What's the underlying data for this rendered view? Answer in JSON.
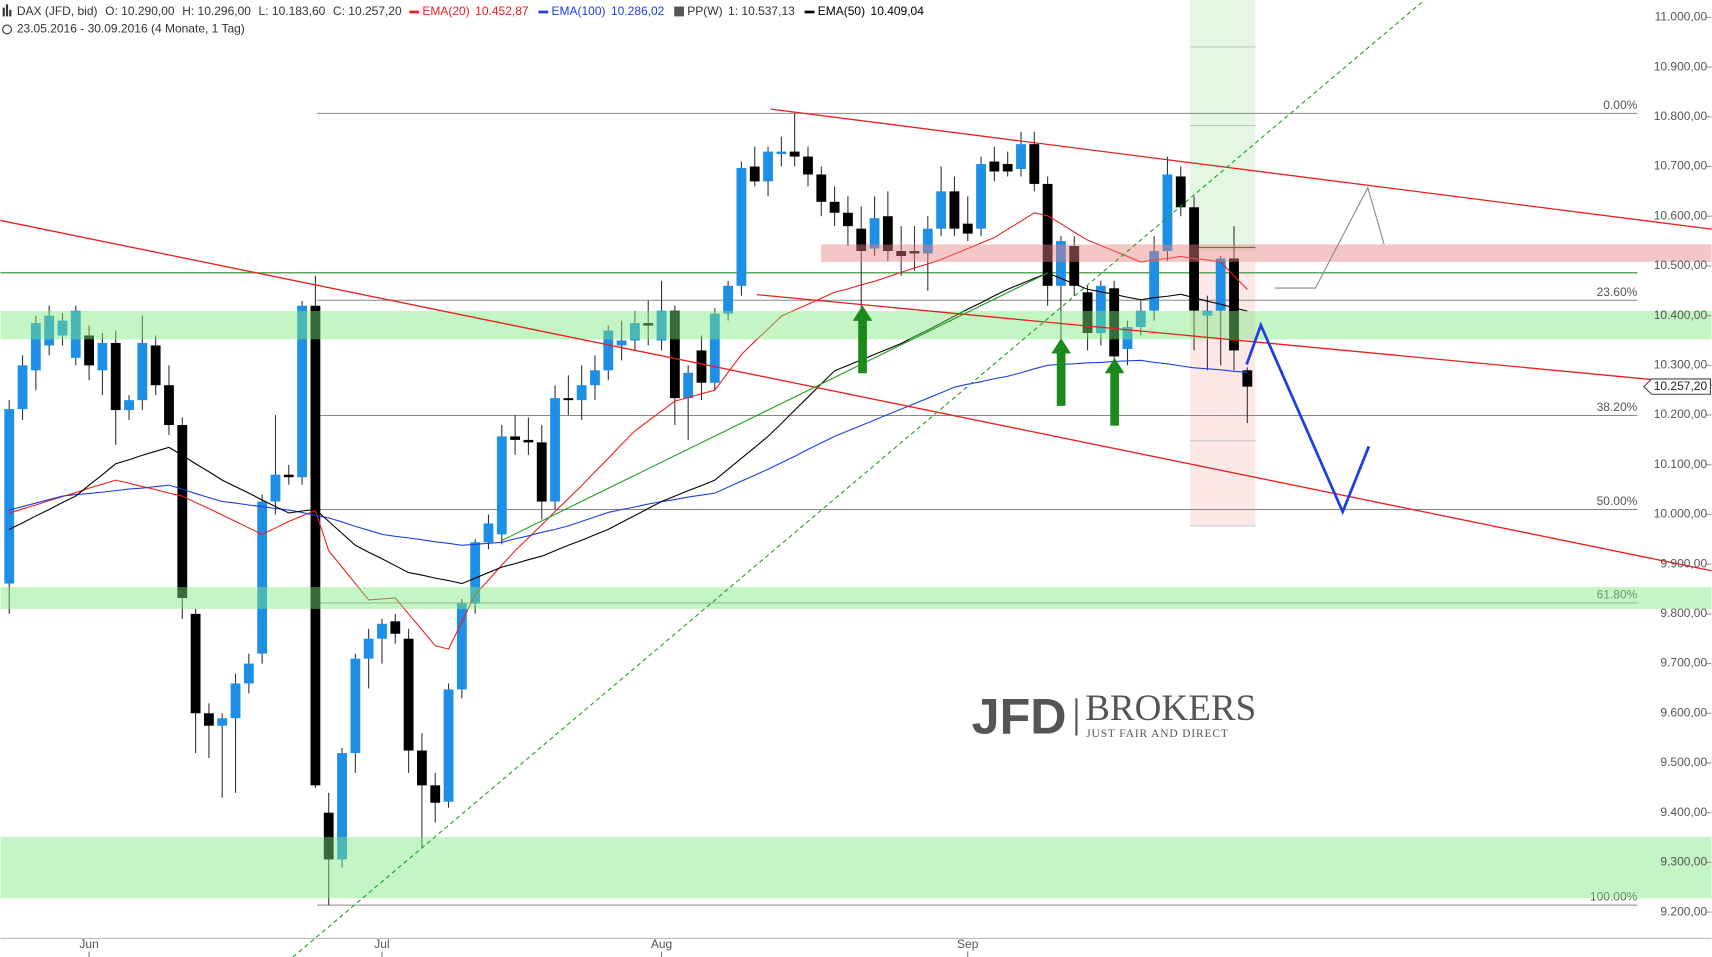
{
  "chart_data": {
    "type": "candlestick",
    "title": "DAX (JFD, bid)",
    "subtitle": "23.05.2016 - 30.09.2016 (4 Monate, 1 Tag)",
    "ohlc_labels": [
      "O: 10.290,00",
      "H: 10.296,00",
      "L: 10.183,60",
      "C: 10.257,20"
    ],
    "categories": [
      null,
      null,
      null,
      null,
      null,
      null,
      "Jun",
      null,
      null,
      null,
      null,
      null,
      null,
      null,
      null,
      null,
      null,
      null,
      null,
      null,
      null,
      null,
      null,
      null,
      null,
      null,
      null,
      null,
      "Jul",
      null,
      null,
      null,
      null,
      null,
      null,
      null,
      null,
      null,
      null,
      null,
      null,
      null,
      null,
      null,
      null,
      null,
      null,
      null,
      null,
      "Aug",
      null,
      null,
      null,
      null,
      null,
      null,
      null,
      null,
      null,
      null,
      null,
      null,
      null,
      null,
      null,
      null,
      null,
      null,
      null,
      null,
      null,
      null,
      "Sep",
      null,
      null,
      null,
      null,
      null,
      null,
      null,
      null,
      null,
      null,
      null,
      null,
      null,
      null,
      null,
      null,
      null,
      null,
      null,
      null,
      null
    ],
    "open": [
      9861,
      10212,
      10290,
      10340,
      10360,
      10315,
      10360,
      10290,
      10345,
      10210,
      10230,
      10340,
      10260,
      10180,
      9800,
      9600,
      9575,
      9590,
      9660,
      9720,
      10026,
      10080,
      10075,
      10420,
      9400,
      9306,
      9520,
      9710,
      9750,
      9785,
      9750,
      9525,
      9455,
      9422,
      9648,
      9821,
      9944,
      9960,
      10157,
      10150,
      10145,
      10026,
      10234,
      10230,
      10260,
      10290,
      10340,
      10350,
      10385,
      10350,
      10410,
      10234,
      10330,
      10265,
      10404,
      10460,
      10700,
      10670,
      10725,
      10730,
      10720,
      10684,
      10629,
      10607,
      10575,
      10535,
      10600,
      10530,
      10530,
      10525,
      10575,
      10650,
      10585,
      10575,
      10710,
      10705,
      10695,
      10745,
      10665,
      10460,
      10540,
      10447,
      10365,
      10455,
      10333,
      10377,
      10410,
      10530,
      10680,
      10618,
      10400,
      10410,
      10515,
      10290
    ],
    "high": [
      10230,
      10320,
      10400,
      10420,
      10405,
      10420,
      10380,
      10365,
      10370,
      10240,
      10400,
      10360,
      10300,
      10195,
      9810,
      9620,
      9600,
      9680,
      9720,
      10040,
      10200,
      10100,
      10430,
      10480,
      9440,
      9530,
      9720,
      9770,
      9790,
      9800,
      9770,
      9560,
      9480,
      9660,
      9830,
      9950,
      10000,
      10180,
      10200,
      10195,
      10180,
      10260,
      10280,
      10300,
      10320,
      10380,
      10390,
      10410,
      10430,
      10470,
      10420,
      10300,
      10360,
      10415,
      10470,
      10710,
      10740,
      10740,
      10760,
      10807,
      10740,
      10700,
      10660,
      10640,
      10620,
      10640,
      10650,
      10580,
      10580,
      10600,
      10700,
      10680,
      10640,
      10720,
      10740,
      10730,
      10770,
      10770,
      10680,
      10560,
      10560,
      10460,
      10470,
      10470,
      10390,
      10430,
      10560,
      10720,
      10700,
      10640,
      10440,
      10520,
      10580,
      10296
    ],
    "low": [
      9800,
      10190,
      10250,
      10320,
      10340,
      10300,
      10270,
      10240,
      10140,
      10190,
      10210,
      10240,
      10160,
      9790,
      9520,
      9510,
      9430,
      9440,
      9640,
      9700,
      10000,
      10060,
      10060,
      9450,
      9214,
      9290,
      9480,
      9650,
      9700,
      9740,
      9480,
      9330,
      9380,
      9410,
      9630,
      9800,
      9930,
      9940,
      10120,
      10120,
      9990,
      10010,
      10200,
      10190,
      10230,
      10270,
      10310,
      10330,
      10340,
      10330,
      10180,
      10150,
      10230,
      10250,
      10390,
      10440,
      10660,
      10640,
      10700,
      10700,
      10660,
      10600,
      10580,
      10540,
      10395,
      10520,
      10510,
      10480,
      10490,
      10450,
      10560,
      10560,
      10550,
      10560,
      10670,
      10680,
      10680,
      10650,
      10420,
      10300,
      10440,
      10330,
      10340,
      10250,
      10300,
      10360,
      10390,
      10510,
      10600,
      10330,
      10290,
      10300,
      10290,
      10183.6
    ],
    "close": [
      10212,
      10300,
      10385,
      10400,
      10390,
      10410,
      10300,
      10345,
      10210,
      10230,
      10345,
      10260,
      10180,
      9832,
      9600,
      9575,
      9590,
      9660,
      9700,
      10026,
      10080,
      10075,
      10420,
      9455,
      9306,
      9520,
      9710,
      9750,
      9780,
      9760,
      9525,
      9455,
      9420,
      9648,
      9821,
      9944,
      9982,
      10157,
      10150,
      10145,
      10026,
      10234,
      10230,
      10260,
      10290,
      10370,
      10350,
      10385,
      10380,
      10410,
      10234,
      10285,
      10265,
      10404,
      10460,
      10697,
      10670,
      10730,
      10730,
      10720,
      10684,
      10629,
      10607,
      10580,
      10530,
      10596,
      10530,
      10520,
      10525,
      10575,
      10650,
      10575,
      10565,
      10705,
      10690,
      10690,
      10745,
      10665,
      10460,
      10550,
      10460,
      10365,
      10460,
      10318,
      10377,
      10410,
      10530,
      10684,
      10618,
      10410,
      10410,
      10515,
      10330,
      10257.2
    ],
    "up_color": "#1e8fe6",
    "down_color": "#000000",
    "series": [
      {
        "name": "EMA(20)",
        "color": "#e8201e",
        "value_label": "10.452,87",
        "values": [
          10003,
          10011,
          10019,
          10028,
          10036,
          10044,
          10053,
          10061,
          10069,
          10063,
          10056,
          10050,
          10043,
          10037,
          10024,
          10012,
          9999,
          9986,
          9973,
          9960,
          9973,
          9986,
          9997,
          10008,
          9927,
          9894,
          9861,
          9828,
          9830,
          9832,
          9800,
          9768,
          9736,
          9729,
          9784,
          9839,
          9868,
          9898,
          9927,
          9953,
          9979,
          10006,
          10032,
          10058,
          10086,
          10113,
          10141,
          10168,
          10188,
          10208,
          10228,
          10235,
          10243,
          10250,
          10286,
          10322,
          10348,
          10373,
          10399,
          10411,
          10423,
          10435,
          10447,
          10454,
          10462,
          10469,
          10478,
          10487,
          10496,
          10504,
          10513,
          10524,
          10535,
          10546,
          10557,
          10574,
          10590,
          10607,
          10601,
          10585,
          10568,
          10552,
          10541,
          10530,
          10519,
          10508,
          10512,
          10515,
          10519,
          10515,
          10512,
          10508,
          10480,
          10452.87
        ]
      },
      {
        "name": "EMA(100)",
        "color": "#1c3fe0",
        "value_label": "10.286,02",
        "values": [
          10009,
          10016,
          10023,
          10030,
          10037,
          10040,
          10042,
          10045,
          10048,
          10051,
          10053,
          10056,
          10059,
          10051,
          10042,
          10034,
          10026,
          10023,
          10019,
          10016,
          10012,
          10009,
          10004,
          9998,
          9993,
          9985,
          9976,
          9968,
          9960,
          9956,
          9953,
          9949,
          9945,
          9942,
          9938,
          9940,
          9942,
          9944,
          9951,
          9957,
          9964,
          9970,
          9977,
          9986,
          9995,
          10004,
          10010,
          10015,
          10021,
          10026,
          10030,
          10035,
          10039,
          10043,
          10055,
          10067,
          10079,
          10091,
          10104,
          10117,
          10131,
          10144,
          10157,
          10168,
          10179,
          10190,
          10201,
          10212,
          10223,
          10234,
          10245,
          10256,
          10262,
          10267,
          10273,
          10278,
          10285,
          10293,
          10300,
          10302,
          10303,
          10305,
          10306,
          10308,
          10309,
          10310,
          10306,
          10303,
          10299,
          10295,
          10293,
          10291,
          10288,
          10286.02
        ]
      },
      {
        "name": "EMA(50)",
        "color": "#000000",
        "value_label": "10.409,04",
        "values": [
          9970,
          9983,
          9997,
          10010,
          10024,
          10037,
          10059,
          10080,
          10102,
          10110,
          10119,
          10127,
          10135,
          10119,
          10102,
          10086,
          10069,
          10056,
          10043,
          10029,
          10016,
          10003,
          10007,
          10010,
          9986,
          9962,
          9938,
          9924,
          9911,
          9897,
          9883,
          9878,
          9872,
          9867,
          9861,
          9872,
          9883,
          9894,
          9901,
          9909,
          9916,
          9927,
          9938,
          9948,
          9959,
          9970,
          9984,
          9998,
          10012,
          10026,
          10037,
          10048,
          10058,
          10069,
          10091,
          10113,
          10135,
          10157,
          10183,
          10210,
          10236,
          10263,
          10289,
          10300,
          10311,
          10322,
          10333,
          10344,
          10358,
          10371,
          10385,
          10399,
          10413,
          10426,
          10440,
          10453,
          10464,
          10475,
          10486,
          10475,
          10464,
          10453,
          10448,
          10443,
          10437,
          10432,
          10436,
          10439,
          10443,
          10436,
          10429,
          10423,
          10416,
          10409.04
        ]
      }
    ],
    "pivot": {
      "name": "PP(W)",
      "label": "1: 10.537,13",
      "value": 10537.13
    },
    "ylim": [
      9147,
      11035
    ],
    "yticks": [
      {
        "value": 9200,
        "label": "9.200,00"
      },
      {
        "value": 9300,
        "label": "9.300,00"
      },
      {
        "value": 9400,
        "label": "9.400,00"
      },
      {
        "value": 9500,
        "label": "9.500,00"
      },
      {
        "value": 9600,
        "label": "9.600,00"
      },
      {
        "value": 9700,
        "label": "9.700,00"
      },
      {
        "value": 9800,
        "label": "9.800,00"
      },
      {
        "value": 9900,
        "label": "9.900,00"
      },
      {
        "value": 10000,
        "label": "10.000,00"
      },
      {
        "value": 10100,
        "label": "10.100,00"
      },
      {
        "value": 10200,
        "label": "10.200,00"
      },
      {
        "value": 10300,
        "label": "10.300,00"
      },
      {
        "value": 10400,
        "label": "10.400,00"
      },
      {
        "value": 10500,
        "label": "10.500,00"
      },
      {
        "value": 10600,
        "label": "10.600,00"
      },
      {
        "value": 10700,
        "label": "10.700,00"
      },
      {
        "value": 10800,
        "label": "10.800,00"
      },
      {
        "value": 10900,
        "label": "10.900,00"
      },
      {
        "value": 11000,
        "label": "11.000,00"
      }
    ],
    "fib_levels": [
      {
        "label": "0.00%",
        "value": 10807
      },
      {
        "label": "23.60%",
        "value": 10431
      },
      {
        "label": "38.20%",
        "value": 10199
      },
      {
        "label": "50.00%",
        "value": 10010
      },
      {
        "label": "61.80%",
        "value": 9822
      },
      {
        "label": "100.00%",
        "value": 9214
      }
    ],
    "price_tag_label": "10.257,20",
    "watermark": {
      "brand": "JFD",
      "name": "BROKERS",
      "slogan": "JUST FAIR AND DIRECT"
    }
  }
}
